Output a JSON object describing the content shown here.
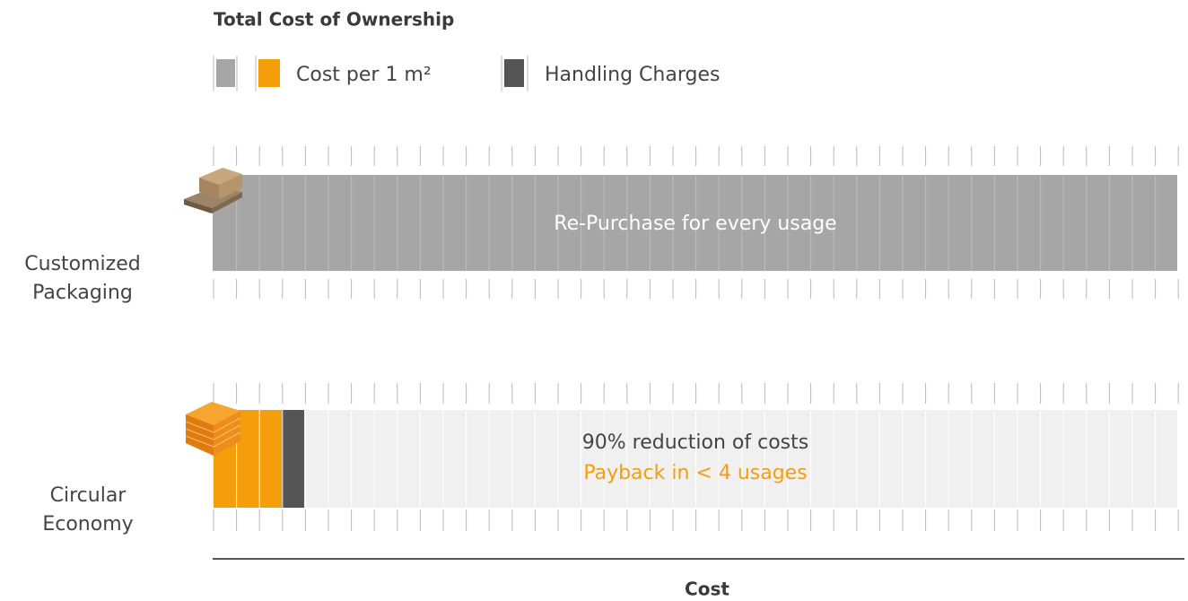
{
  "header": {
    "title": "Total Cost of Ownership"
  },
  "legend": [
    {
      "label": "Cost per 1 m²"
    },
    {
      "label": "Handling Charges"
    }
  ],
  "rows": [
    {
      "label": [
        "Customized",
        "Packaging"
      ],
      "bar_text": [
        "Re-Purchase for every usage"
      ]
    },
    {
      "label": [
        "Circular",
        "Economy"
      ],
      "bar_text": [
        "90% reduction of costs",
        "Payback in < 4 usages"
      ]
    }
  ],
  "axis": {
    "label": "Cost"
  }
}
